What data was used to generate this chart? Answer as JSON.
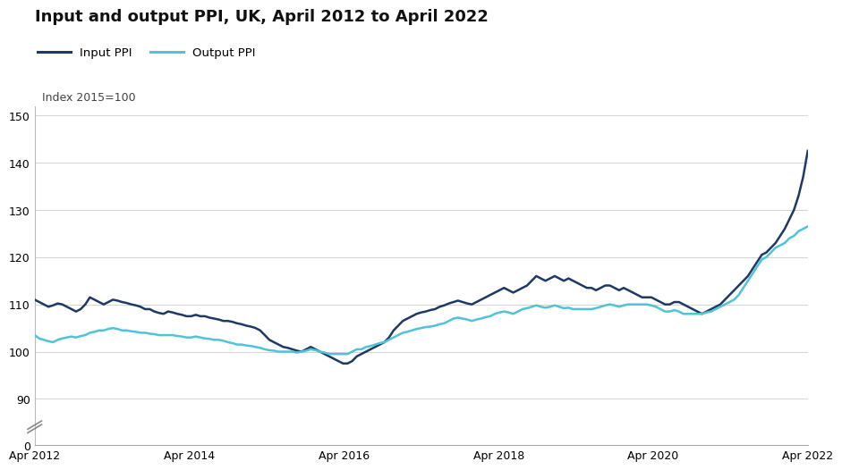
{
  "title": "Input and output PPI, UK, April 2012 to April 2022",
  "ylabel": "Index 2015=100",
  "title_fontsize": 13,
  "label_fontsize": 9,
  "input_color": "#1f3864",
  "output_color": "#4fc3d8",
  "background_color": "#ffffff",
  "ylim_main": [
    85,
    152
  ],
  "ylim_break": [
    0,
    5
  ],
  "yticks_main": [
    90,
    100,
    110,
    120,
    130,
    140,
    150
  ],
  "ytick_break": [
    0
  ],
  "legend_labels": [
    "Input PPI",
    "Output PPI"
  ],
  "xtick_positions": [
    0,
    24,
    48,
    72,
    96,
    120
  ],
  "xtick_labels": [
    "Apr 2012",
    "Apr 2014",
    "Apr 2016",
    "Apr 2018",
    "Apr 2020",
    "Apr 2022"
  ],
  "input_ppi": [
    111.0,
    110.5,
    110.0,
    109.5,
    109.8,
    110.2,
    110.0,
    109.5,
    109.0,
    108.5,
    109.0,
    110.0,
    111.5,
    111.0,
    110.5,
    110.0,
    110.5,
    111.0,
    110.8,
    110.5,
    110.3,
    110.0,
    109.8,
    109.5,
    109.0,
    109.0,
    108.5,
    108.2,
    108.0,
    108.5,
    108.3,
    108.0,
    107.8,
    107.5,
    107.5,
    107.8,
    107.5,
    107.5,
    107.2,
    107.0,
    106.8,
    106.5,
    106.5,
    106.3,
    106.0,
    105.8,
    105.5,
    105.3,
    105.0,
    104.5,
    103.5,
    102.5,
    102.0,
    101.5,
    101.0,
    100.8,
    100.5,
    100.2,
    100.0,
    100.5,
    101.0,
    100.5,
    100.0,
    99.5,
    99.0,
    98.5,
    98.0,
    97.5,
    97.5,
    98.0,
    99.0,
    99.5,
    100.0,
    100.5,
    101.0,
    101.5,
    102.0,
    103.0,
    104.5,
    105.5,
    106.5,
    107.0,
    107.5,
    108.0,
    108.3,
    108.5,
    108.8,
    109.0,
    109.5,
    109.8,
    110.2,
    110.5,
    110.8,
    110.5,
    110.2,
    110.0,
    110.5,
    111.0,
    111.5,
    112.0,
    112.5,
    113.0,
    113.5,
    113.0,
    112.5,
    113.0,
    113.5,
    114.0,
    115.0,
    116.0,
    115.5,
    115.0,
    115.5,
    116.0,
    115.5,
    115.0,
    115.5,
    115.0,
    114.5,
    114.0,
    113.5,
    113.5,
    113.0,
    113.5,
    114.0,
    114.0,
    113.5,
    113.0,
    113.5,
    113.0,
    112.5,
    112.0,
    111.5,
    111.5,
    111.5,
    111.0,
    110.5,
    110.0,
    110.0,
    110.5,
    110.5,
    110.0,
    109.5,
    109.0,
    108.5,
    108.0,
    108.5,
    109.0,
    109.5,
    110.0,
    111.0,
    112.0,
    113.0,
    114.0,
    115.0,
    116.0,
    117.5,
    119.0,
    120.5,
    121.0,
    122.0,
    123.0,
    124.5,
    126.0,
    128.0,
    130.0,
    133.0,
    137.0,
    142.5
  ],
  "output_ppi": [
    103.5,
    102.8,
    102.5,
    102.2,
    102.0,
    102.5,
    102.8,
    103.0,
    103.2,
    103.0,
    103.3,
    103.5,
    104.0,
    104.2,
    104.5,
    104.5,
    104.8,
    105.0,
    104.8,
    104.5,
    104.5,
    104.3,
    104.2,
    104.0,
    104.0,
    103.8,
    103.7,
    103.5,
    103.5,
    103.5,
    103.5,
    103.3,
    103.2,
    103.0,
    103.0,
    103.2,
    103.0,
    102.8,
    102.7,
    102.5,
    102.5,
    102.3,
    102.0,
    101.8,
    101.5,
    101.5,
    101.3,
    101.2,
    101.0,
    100.8,
    100.5,
    100.3,
    100.2,
    100.0,
    100.0,
    100.0,
    100.0,
    99.8,
    100.0,
    100.2,
    100.5,
    100.3,
    100.0,
    99.8,
    99.5,
    99.5,
    99.5,
    99.5,
    99.5,
    100.0,
    100.5,
    100.5,
    101.0,
    101.2,
    101.5,
    101.8,
    102.0,
    102.5,
    103.0,
    103.5,
    104.0,
    104.2,
    104.5,
    104.8,
    105.0,
    105.2,
    105.3,
    105.5,
    105.8,
    106.0,
    106.5,
    107.0,
    107.2,
    107.0,
    106.8,
    106.5,
    106.8,
    107.0,
    107.3,
    107.5,
    108.0,
    108.3,
    108.5,
    108.3,
    108.0,
    108.5,
    109.0,
    109.2,
    109.5,
    109.8,
    109.5,
    109.3,
    109.5,
    109.8,
    109.5,
    109.2,
    109.3,
    109.0,
    109.0,
    109.0,
    109.0,
    109.0,
    109.2,
    109.5,
    109.8,
    110.0,
    109.8,
    109.5,
    109.8,
    110.0,
    110.0,
    110.0,
    110.0,
    110.0,
    109.8,
    109.5,
    109.0,
    108.5,
    108.5,
    108.8,
    108.5,
    108.0,
    108.0,
    108.0,
    108.0,
    108.0,
    108.3,
    108.5,
    109.0,
    109.5,
    110.0,
    110.5,
    111.0,
    112.0,
    113.5,
    115.0,
    116.5,
    118.0,
    119.5,
    120.0,
    121.0,
    122.0,
    122.5,
    123.0,
    124.0,
    124.5,
    125.5,
    126.0,
    126.5
  ]
}
